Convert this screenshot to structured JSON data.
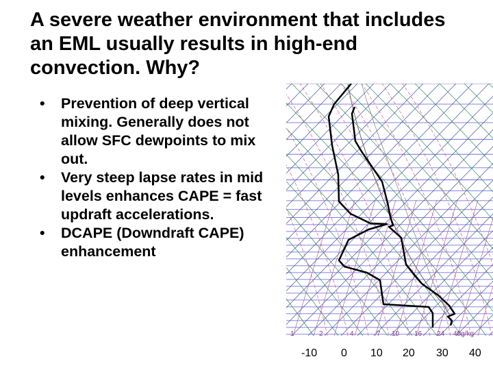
{
  "slide": {
    "title": "A severe weather environment that includes an EML usually results in high-end convection. Why?",
    "bullets": [
      "Prevention of deep vertical mixing. Generally does not allow SFC dewpoints to mix out.",
      "Very steep lapse rates in mid levels enhances CAPE = fast updraft accelerations.",
      "DCAPE (Downdraft CAPE) enhancement"
    ],
    "bullet_symbol": "•"
  },
  "sounding": {
    "mixing_ratio_labels": [
      "1",
      "2",
      "4",
      "7",
      "10",
      "16",
      "24",
      "40g/kg"
    ],
    "temperature_labels": [
      "-10",
      "0",
      "10",
      "20",
      "30",
      "40"
    ],
    "colors": {
      "isobar": "#5a5ad6",
      "isotherm": "#3f4fa8",
      "dry_adiabat": "#2f8f52",
      "moist_adiabat": "#d46aa0",
      "mixing_ratio": "#a64c8c",
      "parcel": "#666666",
      "profile": "#000000",
      "label": "#8a3c8a"
    }
  }
}
